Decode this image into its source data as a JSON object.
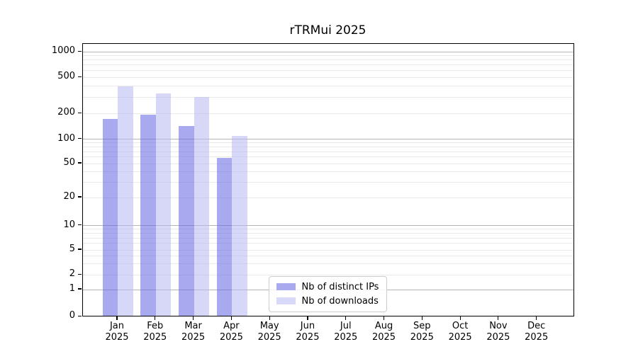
{
  "title": "rTRMui 2025",
  "chart_data": {
    "type": "bar",
    "title": "rTRMui 2025",
    "scale_y": "log-like (0,1,2,5,10,20,50,100,200,500,1000)",
    "grid": true,
    "legend_position": "bottom-center",
    "categories": [
      "Jan",
      "Feb",
      "Mar",
      "Apr",
      "May",
      "Jun",
      "Jul",
      "Aug",
      "Sep",
      "Oct",
      "Nov",
      "Dec"
    ],
    "year_label": "2025",
    "y_ticks": [
      0,
      1,
      2,
      5,
      10,
      20,
      50,
      100,
      200,
      500,
      1000
    ],
    "ylim": [
      0,
      1000
    ],
    "series": [
      {
        "name": "Nb of distinct IPs",
        "values": [
          170,
          190,
          140,
          58,
          null,
          null,
          null,
          null,
          null,
          null,
          null,
          null
        ]
      },
      {
        "name": "Nb of downloads",
        "values": [
          390,
          330,
          300,
          107,
          null,
          null,
          null,
          null,
          null,
          null,
          null,
          null
        ]
      }
    ]
  },
  "colors": {
    "bar_ips_fill": "rgba(99,99,228,0.55)",
    "bar_downloads_fill": "rgba(182,182,242,0.55)",
    "legend_swatch_ips": "#a9a9f0",
    "legend_swatch_downloads": "#d8d8f8",
    "grid_major": "#b5b5b5",
    "grid_minor": "#e9e9e9"
  }
}
